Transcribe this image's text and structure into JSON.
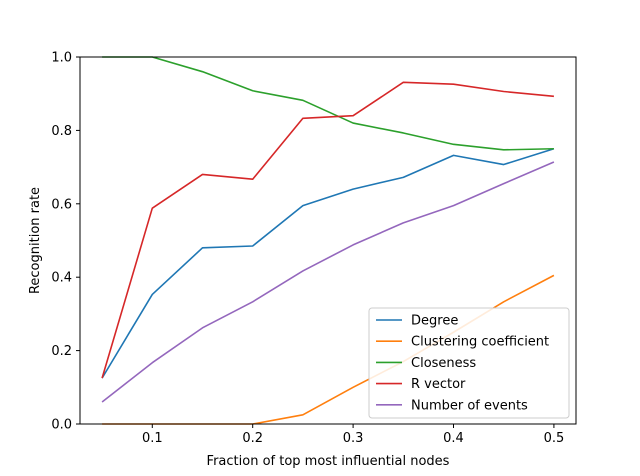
{
  "chart_data": {
    "type": "line",
    "title": "",
    "xlabel": "Fraction of top most influential nodes",
    "ylabel": "Recognition rate",
    "xlim": [
      0.028,
      0.522
    ],
    "ylim": [
      0.0,
      1.0
    ],
    "x_ticks": [
      0.1,
      0.2,
      0.3,
      0.4,
      0.5
    ],
    "x_tick_labels": [
      "0.1",
      "0.2",
      "0.3",
      "0.4",
      "0.5"
    ],
    "y_ticks": [
      0.0,
      0.2,
      0.4,
      0.6,
      0.8,
      1.0
    ],
    "y_tick_labels": [
      "0.0",
      "0.2",
      "0.4",
      "0.6",
      "0.8",
      "1.0"
    ],
    "grid": false,
    "legend_position": "lower-right",
    "x": [
      0.05,
      0.1,
      0.15,
      0.2,
      0.25,
      0.3,
      0.35,
      0.4,
      0.45,
      0.5
    ],
    "series": [
      {
        "name": "Degree",
        "color": "#1f77b4",
        "values": [
          0.125,
          0.353,
          0.48,
          0.485,
          0.595,
          0.64,
          0.672,
          0.732,
          0.707,
          0.75
        ]
      },
      {
        "name": "Clustering coefficient",
        "color": "#ff7f0e",
        "values": [
          0.0,
          0.0,
          0.0,
          0.0,
          0.025,
          0.1,
          0.17,
          0.25,
          0.333,
          0.405
        ]
      },
      {
        "name": "Closeness",
        "color": "#2ca02c",
        "values": [
          1.0,
          1.0,
          0.96,
          0.908,
          0.882,
          0.82,
          0.793,
          0.762,
          0.747,
          0.75
        ]
      },
      {
        "name": "R vector",
        "color": "#d62728",
        "values": [
          0.125,
          0.588,
          0.68,
          0.667,
          0.833,
          0.84,
          0.931,
          0.926,
          0.906,
          0.893
        ]
      },
      {
        "name": "Number of events",
        "color": "#9467bd",
        "values": [
          0.06,
          0.167,
          0.262,
          0.333,
          0.417,
          0.488,
          0.548,
          0.595,
          0.655,
          0.714
        ]
      }
    ]
  }
}
